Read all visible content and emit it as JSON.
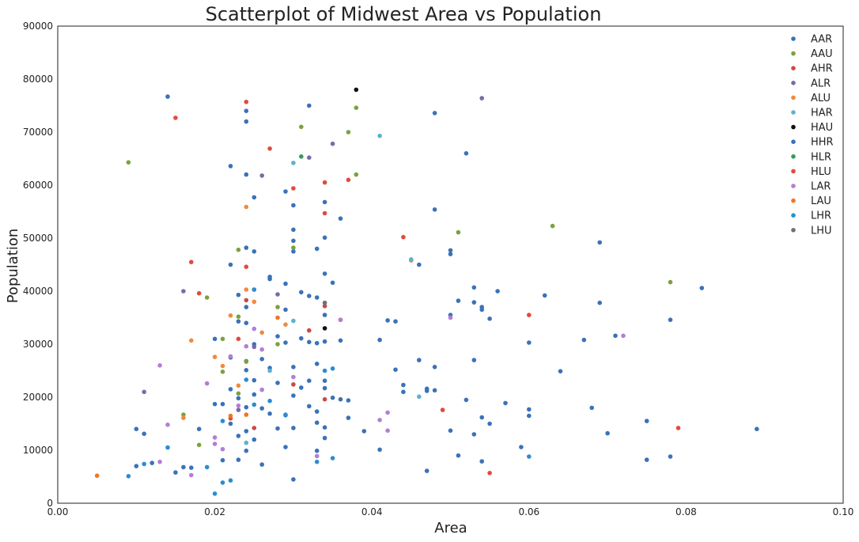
{
  "chart_data": {
    "type": "scatter",
    "title": "Scatterplot of Midwest Area vs Population",
    "xlabel": "Area",
    "ylabel": "Population",
    "xlim": [
      0,
      0.1
    ],
    "ylim": [
      0,
      90000
    ],
    "x_ticks": [
      "0.00",
      "0.02",
      "0.04",
      "0.06",
      "0.08",
      "0.10"
    ],
    "y_ticks": [
      "0",
      "10000",
      "20000",
      "30000",
      "40000",
      "50000",
      "60000",
      "70000",
      "80000",
      "90000"
    ],
    "grid": false,
    "legend_position": "top-right",
    "series": [
      {
        "name": "AAR",
        "color": "#3a72b8",
        "points": [
          [
            0.014,
            76700
          ],
          [
            0.024,
            74000
          ],
          [
            0.032,
            75000
          ],
          [
            0.024,
            72000
          ],
          [
            0.048,
            73600
          ],
          [
            0.052,
            66000
          ],
          [
            0.022,
            63600
          ],
          [
            0.024,
            62000
          ],
          [
            0.029,
            58800
          ],
          [
            0.025,
            57700
          ],
          [
            0.03,
            56200
          ],
          [
            0.034,
            56800
          ],
          [
            0.036,
            53700
          ],
          [
            0.048,
            55400
          ],
          [
            0.03,
            51600
          ],
          [
            0.034,
            50100
          ],
          [
            0.03,
            49500
          ],
          [
            0.024,
            48200
          ],
          [
            0.025,
            47500
          ],
          [
            0.03,
            47500
          ],
          [
            0.033,
            48000
          ],
          [
            0.046,
            45000
          ],
          [
            0.05,
            47700
          ],
          [
            0.05,
            47000
          ],
          [
            0.069,
            49200
          ],
          [
            0.034,
            43300
          ],
          [
            0.027,
            42700
          ],
          [
            0.027,
            42300
          ],
          [
            0.029,
            41400
          ],
          [
            0.035,
            41600
          ],
          [
            0.053,
            40700
          ],
          [
            0.056,
            40000
          ],
          [
            0.062,
            39200
          ],
          [
            0.082,
            40600
          ],
          [
            0.023,
            39300
          ],
          [
            0.031,
            39800
          ],
          [
            0.032,
            39100
          ],
          [
            0.033,
            38800
          ],
          [
            0.051,
            38200
          ],
          [
            0.053,
            37900
          ],
          [
            0.054,
            37000
          ],
          [
            0.054,
            36500
          ],
          [
            0.069,
            37800
          ],
          [
            0.024,
            37000
          ],
          [
            0.029,
            36500
          ],
          [
            0.034,
            35500
          ],
          [
            0.05,
            35500
          ],
          [
            0.055,
            34800
          ],
          [
            0.042,
            34500
          ],
          [
            0.043,
            34300
          ],
          [
            0.078,
            34600
          ],
          [
            0.02,
            31000
          ],
          [
            0.025,
            30000
          ],
          [
            0.028,
            31500
          ],
          [
            0.029,
            30300
          ],
          [
            0.032,
            30400
          ],
          [
            0.033,
            30200
          ],
          [
            0.034,
            30500
          ],
          [
            0.036,
            30700
          ],
          [
            0.041,
            30800
          ],
          [
            0.06,
            30300
          ],
          [
            0.067,
            30800
          ],
          [
            0.071,
            31600
          ],
          [
            0.022,
            27500
          ],
          [
            0.024,
            26800
          ],
          [
            0.026,
            27200
          ],
          [
            0.03,
            25700
          ],
          [
            0.033,
            26300
          ],
          [
            0.043,
            25200
          ],
          [
            0.046,
            27000
          ],
          [
            0.048,
            25700
          ],
          [
            0.053,
            27000
          ],
          [
            0.064,
            24900
          ],
          [
            0.044,
            22300
          ],
          [
            0.047,
            21600
          ],
          [
            0.048,
            21300
          ],
          [
            0.044,
            21000
          ],
          [
            0.047,
            21200
          ],
          [
            0.034,
            21700
          ],
          [
            0.031,
            21800
          ],
          [
            0.03,
            20300
          ],
          [
            0.036,
            19600
          ],
          [
            0.037,
            19400
          ],
          [
            0.035,
            19900
          ],
          [
            0.052,
            19500
          ],
          [
            0.057,
            18900
          ],
          [
            0.068,
            18000
          ],
          [
            0.06,
            17700
          ],
          [
            0.054,
            16200
          ],
          [
            0.06,
            16500
          ],
          [
            0.055,
            15000
          ],
          [
            0.075,
            15500
          ],
          [
            0.05,
            13700
          ],
          [
            0.053,
            13000
          ],
          [
            0.07,
            13200
          ],
          [
            0.089,
            14000
          ],
          [
            0.059,
            10600
          ],
          [
            0.041,
            10100
          ],
          [
            0.051,
            9000
          ],
          [
            0.054,
            7900
          ],
          [
            0.075,
            8200
          ],
          [
            0.078,
            8800
          ],
          [
            0.047,
            6100
          ],
          [
            0.039,
            13600
          ],
          [
            0.037,
            16100
          ],
          [
            0.033,
            17300
          ],
          [
            0.032,
            18300
          ],
          [
            0.029,
            16600
          ],
          [
            0.027,
            16900
          ],
          [
            0.026,
            17900
          ],
          [
            0.025,
            20500
          ],
          [
            0.024,
            18100
          ],
          [
            0.023,
            19800
          ],
          [
            0.022,
            21500
          ],
          [
            0.021,
            18700
          ],
          [
            0.02,
            18700
          ],
          [
            0.018,
            14000
          ],
          [
            0.015,
            5800
          ],
          [
            0.011,
            13100
          ],
          [
            0.01,
            14000
          ],
          [
            0.01,
            7000
          ],
          [
            0.012,
            7600
          ],
          [
            0.016,
            6800
          ],
          [
            0.017,
            6700
          ],
          [
            0.022,
            15000
          ],
          [
            0.023,
            12700
          ],
          [
            0.024,
            13600
          ],
          [
            0.025,
            12000
          ],
          [
            0.028,
            14100
          ],
          [
            0.03,
            14200
          ],
          [
            0.033,
            15200
          ],
          [
            0.034,
            14300
          ],
          [
            0.034,
            12300
          ],
          [
            0.033,
            9900
          ],
          [
            0.029,
            10600
          ],
          [
            0.026,
            7300
          ],
          [
            0.024,
            9900
          ],
          [
            0.023,
            8200
          ],
          [
            0.021,
            8100
          ],
          [
            0.03,
            4500
          ],
          [
            0.034,
            23100
          ],
          [
            0.032,
            23100
          ],
          [
            0.028,
            22700
          ],
          [
            0.025,
            23200
          ],
          [
            0.024,
            25100
          ],
          [
            0.027,
            25500
          ],
          [
            0.023,
            34300
          ]
        ]
      },
      {
        "name": "AAU",
        "color": "#7ba23f",
        "points": [
          [
            0.009,
            64300
          ],
          [
            0.031,
            71000
          ],
          [
            0.037,
            70000
          ],
          [
            0.038,
            74600
          ],
          [
            0.038,
            62000
          ],
          [
            0.023,
            47800
          ],
          [
            0.03,
            48200
          ],
          [
            0.051,
            51100
          ],
          [
            0.063,
            52300
          ],
          [
            0.019,
            38800
          ],
          [
            0.028,
            37000
          ],
          [
            0.078,
            41700
          ],
          [
            0.023,
            35200
          ],
          [
            0.028,
            30000
          ],
          [
            0.021,
            31000
          ],
          [
            0.023,
            20700
          ],
          [
            0.016,
            16700
          ],
          [
            0.018,
            11000
          ],
          [
            0.024,
            26700
          ],
          [
            0.021,
            24800
          ]
        ]
      },
      {
        "name": "AHR",
        "color": "#c94b44",
        "points": [
          [
            0.024,
            38300
          ],
          [
            0.034,
            37200
          ],
          [
            0.032,
            32600
          ],
          [
            0.036,
            34600
          ],
          [
            0.034,
            19600
          ],
          [
            0.03,
            22400
          ],
          [
            0.025,
            14200
          ]
        ]
      },
      {
        "name": "ALR",
        "color": "#7c69a8",
        "points": [
          [
            0.054,
            76400
          ],
          [
            0.035,
            67800
          ],
          [
            0.026,
            61800
          ],
          [
            0.032,
            65200
          ],
          [
            0.016,
            40000
          ],
          [
            0.028,
            39400
          ],
          [
            0.025,
            29500
          ],
          [
            0.023,
            17600
          ],
          [
            0.011,
            21000
          ]
        ]
      },
      {
        "name": "ALU",
        "color": "#f08a3e",
        "points": [
          [
            0.024,
            55900
          ],
          [
            0.045,
            45800
          ],
          [
            0.017,
            30700
          ],
          [
            0.022,
            35400
          ],
          [
            0.024,
            40300
          ],
          [
            0.025,
            38000
          ],
          [
            0.026,
            32200
          ],
          [
            0.029,
            33700
          ],
          [
            0.02,
            27600
          ],
          [
            0.021,
            25900
          ],
          [
            0.023,
            22200
          ],
          [
            0.016,
            16100
          ]
        ]
      },
      {
        "name": "HAR",
        "color": "#5ab2cf",
        "points": [
          [
            0.03,
            64200
          ],
          [
            0.041,
            69300
          ],
          [
            0.045,
            46000
          ],
          [
            0.03,
            34400
          ],
          [
            0.027,
            25000
          ],
          [
            0.046,
            20100
          ],
          [
            0.024,
            11400
          ]
        ]
      },
      {
        "name": "HAU",
        "color": "#111111",
        "points": [
          [
            0.038,
            78000
          ],
          [
            0.034,
            33000
          ]
        ]
      },
      {
        "name": "HHR",
        "color": "#3a72b8",
        "points": [
          [
            0.022,
            45000
          ],
          [
            0.031,
            31100
          ],
          [
            0.024,
            34000
          ]
        ]
      },
      {
        "name": "HLR",
        "color": "#2ca05a",
        "points": [
          [
            0.031,
            65400
          ]
        ]
      },
      {
        "name": "HLU",
        "color": "#e24a3b",
        "points": [
          [
            0.015,
            72700
          ],
          [
            0.024,
            75700
          ],
          [
            0.027,
            66900
          ],
          [
            0.03,
            59400
          ],
          [
            0.034,
            60500
          ],
          [
            0.037,
            61000
          ],
          [
            0.034,
            54700
          ],
          [
            0.044,
            50200
          ],
          [
            0.017,
            45500
          ],
          [
            0.018,
            39600
          ],
          [
            0.024,
            44600
          ],
          [
            0.06,
            35500
          ],
          [
            0.049,
            17600
          ],
          [
            0.079,
            14200
          ],
          [
            0.055,
            5700
          ],
          [
            0.023,
            31000
          ],
          [
            0.022,
            16000
          ]
        ]
      },
      {
        "name": "LAR",
        "color": "#b47ed4",
        "points": [
          [
            0.013,
            26000
          ],
          [
            0.019,
            22600
          ],
          [
            0.05,
            35000
          ],
          [
            0.072,
            31600
          ],
          [
            0.036,
            34600
          ],
          [
            0.042,
            17100
          ],
          [
            0.041,
            15700
          ],
          [
            0.042,
            13700
          ],
          [
            0.014,
            14800
          ],
          [
            0.02,
            12400
          ],
          [
            0.02,
            11200
          ],
          [
            0.013,
            7800
          ],
          [
            0.017,
            5300
          ],
          [
            0.033,
            8900
          ],
          [
            0.022,
            27700
          ],
          [
            0.024,
            29600
          ],
          [
            0.025,
            32900
          ],
          [
            0.026,
            21400
          ],
          [
            0.03,
            23800
          ],
          [
            0.023,
            18400
          ],
          [
            0.021,
            10200
          ],
          [
            0.026,
            29000
          ]
        ]
      },
      {
        "name": "LAU",
        "color": "#f07722",
        "points": [
          [
            0.005,
            5200
          ],
          [
            0.025,
            40300
          ],
          [
            0.028,
            35000
          ],
          [
            0.022,
            16500
          ],
          [
            0.024,
            16700
          ]
        ]
      },
      {
        "name": "LHR",
        "color": "#2a8dd0",
        "points": [
          [
            0.014,
            10500
          ],
          [
            0.009,
            5100
          ],
          [
            0.011,
            7400
          ],
          [
            0.02,
            1800
          ],
          [
            0.021,
            3900
          ],
          [
            0.022,
            4300
          ],
          [
            0.019,
            6800
          ],
          [
            0.033,
            7800
          ],
          [
            0.035,
            8500
          ],
          [
            0.034,
            25000
          ],
          [
            0.035,
            25400
          ],
          [
            0.025,
            40300
          ],
          [
            0.06,
            8800
          ],
          [
            0.021,
            15500
          ],
          [
            0.025,
            18600
          ],
          [
            0.027,
            19300
          ],
          [
            0.024,
            23300
          ],
          [
            0.029,
            16700
          ]
        ]
      },
      {
        "name": "LHU",
        "color": "#6f6f7c",
        "points": [
          [
            0.034,
            37800
          ]
        ]
      }
    ]
  }
}
